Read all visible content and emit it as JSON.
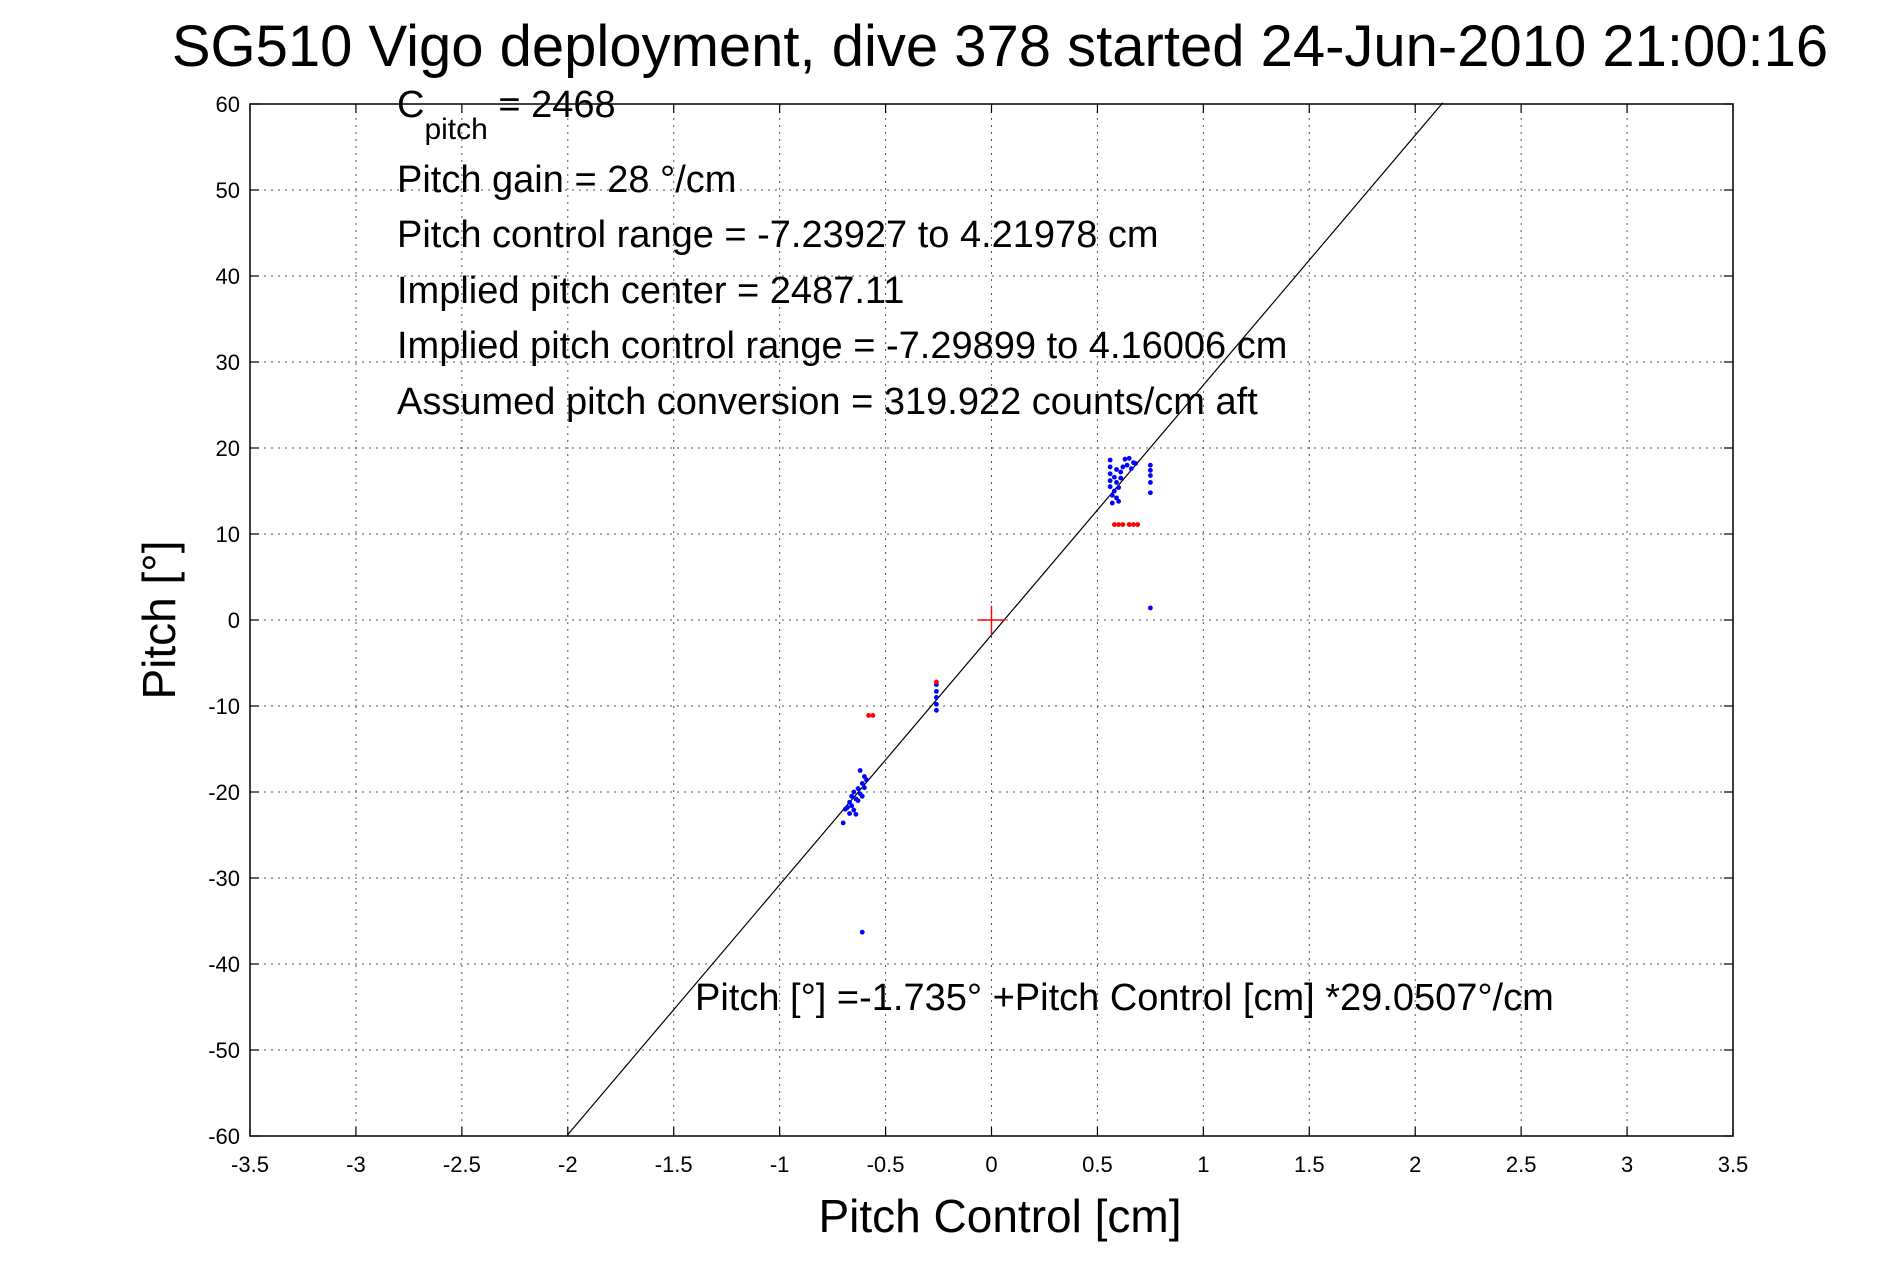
{
  "chart_data": {
    "type": "scatter",
    "title": "SG510 Vigo deployment, dive 378 started 24-Jun-2010 21:00:16",
    "xlabel": "Pitch Control [cm]",
    "ylabel": "Pitch [°]",
    "xlim": [
      -3.5,
      3.5
    ],
    "ylim": [
      -60,
      60
    ],
    "x_ticks": [
      -3.5,
      -3,
      -2.5,
      -2,
      -1.5,
      -1,
      -0.5,
      0,
      0.5,
      1,
      1.5,
      2,
      2.5,
      3,
      3.5
    ],
    "y_ticks": [
      -60,
      -50,
      -40,
      -30,
      -20,
      -10,
      0,
      10,
      20,
      30,
      40,
      50,
      60
    ],
    "x_tick_labels": [
      "-3.5",
      "-3",
      "-2.5",
      "-2",
      "-1.5",
      "-1",
      "-0.5",
      "0",
      "0.5",
      "1",
      "1.5",
      "2",
      "2.5",
      "3",
      "3.5"
    ],
    "y_tick_labels": [
      "-60",
      "-50",
      "-40",
      "-30",
      "-20",
      "-10",
      "0",
      "10",
      "20",
      "30",
      "40",
      "50",
      "60"
    ],
    "grid": true,
    "annotations": {
      "c_pitch_main": "C",
      "c_pitch_sub": "pitch",
      "c_pitch_value": " = 2468",
      "pitch_gain": "Pitch gain = 28 °/cm",
      "pitch_control_range": "Pitch control range = -7.23927 to 4.21978 cm",
      "implied_pitch_center": "Implied pitch center = 2487.11",
      "implied_pitch_control_range": "Implied pitch control range = -7.29899 to 4.16006 cm",
      "assumed_pitch_conversion": "Assumed pitch conversion = 319.922 counts/cm aft",
      "fit_equation": "Pitch [°] =-1.735° +Pitch Control [cm] *29.0507°/cm"
    },
    "fit_line": {
      "intercept": -1.735,
      "slope": 29.0507,
      "x_range": [
        -2.0,
        2.13
      ],
      "color": "#000000"
    },
    "center_marker": {
      "x": 0,
      "y": 0,
      "color": "#ff0000"
    },
    "series": [
      {
        "color": "#0000ff",
        "points": [
          [
            -0.7,
            -23.6
          ],
          [
            -0.69,
            -22.0
          ],
          [
            -0.68,
            -21.8
          ],
          [
            -0.67,
            -21.2
          ],
          [
            -0.67,
            -22.5
          ],
          [
            -0.66,
            -20.5
          ],
          [
            -0.66,
            -21.6
          ],
          [
            -0.65,
            -20.0
          ],
          [
            -0.65,
            -22.1
          ],
          [
            -0.64,
            -20.8
          ],
          [
            -0.64,
            -22.6
          ],
          [
            -0.63,
            -19.6
          ],
          [
            -0.63,
            -21.0
          ],
          [
            -0.62,
            -20.2
          ],
          [
            -0.62,
            -17.5
          ],
          [
            -0.61,
            -19.0
          ],
          [
            -0.61,
            -20.5
          ],
          [
            -0.6,
            -18.2
          ],
          [
            -0.6,
            -19.5
          ],
          [
            -0.59,
            -18.6
          ],
          [
            -0.61,
            -36.3
          ],
          [
            -0.26,
            -7.5
          ],
          [
            -0.26,
            -8.3
          ],
          [
            -0.26,
            -9.0
          ],
          [
            -0.26,
            -9.8
          ],
          [
            -0.26,
            -10.5
          ],
          [
            0.56,
            18.6
          ],
          [
            0.56,
            17.8
          ],
          [
            0.56,
            17.0
          ],
          [
            0.56,
            16.2
          ],
          [
            0.56,
            15.5
          ],
          [
            0.57,
            14.5
          ],
          [
            0.57,
            13.6
          ],
          [
            0.58,
            15.0
          ],
          [
            0.58,
            16.6
          ],
          [
            0.59,
            14.2
          ],
          [
            0.59,
            16.0
          ],
          [
            0.59,
            17.5
          ],
          [
            0.6,
            15.4
          ],
          [
            0.6,
            13.8
          ],
          [
            0.61,
            17.2
          ],
          [
            0.61,
            16.5
          ],
          [
            0.62,
            17.8
          ],
          [
            0.63,
            18.7
          ],
          [
            0.64,
            18.0
          ],
          [
            0.65,
            18.8
          ],
          [
            0.66,
            17.6
          ],
          [
            0.67,
            18.3
          ],
          [
            0.68,
            18.2
          ],
          [
            0.75,
            18.0
          ],
          [
            0.75,
            17.4
          ],
          [
            0.75,
            16.8
          ],
          [
            0.75,
            16.0
          ],
          [
            0.75,
            14.8
          ],
          [
            0.75,
            1.4
          ]
        ]
      },
      {
        "color": "#ff0000",
        "points": [
          [
            -0.58,
            -11.1
          ],
          [
            -0.56,
            -11.1
          ],
          [
            -0.26,
            -7.2
          ],
          [
            0.58,
            11.1
          ],
          [
            0.6,
            11.1
          ],
          [
            0.62,
            11.1
          ],
          [
            0.65,
            11.1
          ],
          [
            0.67,
            11.1
          ],
          [
            0.69,
            11.1
          ]
        ]
      }
    ]
  }
}
